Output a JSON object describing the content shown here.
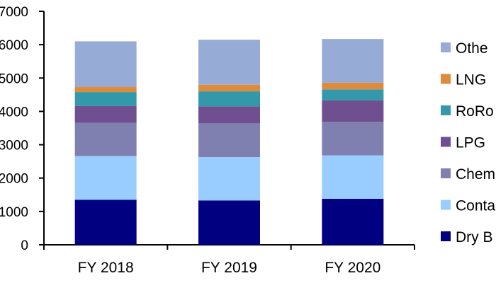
{
  "chart_data": {
    "type": "bar",
    "stacked": true,
    "categories": [
      "FY 2018",
      "FY 2019",
      "FY 2020"
    ],
    "ylim": [
      0,
      7000
    ],
    "yticks": [
      0,
      1000,
      2000,
      3000,
      4000,
      5000,
      6000,
      7000
    ],
    "ytick_labels": [
      "0",
      "1000",
      "2000",
      "3000",
      "4000",
      "5000",
      "6000",
      "7000"
    ],
    "legend_position": "right",
    "series": [
      {
        "name": "Dry B",
        "color": "#000080",
        "values": [
          1350,
          1330,
          1380
        ]
      },
      {
        "name": "Conta",
        "color": "#99CCFF",
        "values": [
          1310,
          1300,
          1300
        ]
      },
      {
        "name": "Chem",
        "color": "#8080B0",
        "values": [
          1000,
          1010,
          1010
        ]
      },
      {
        "name": "LPG",
        "color": "#6F4F8F",
        "values": [
          500,
          510,
          640
        ]
      },
      {
        "name": "RoRo",
        "color": "#3399AA",
        "values": [
          420,
          450,
          330
        ]
      },
      {
        "name": "LNG",
        "color": "#E08A3C",
        "values": [
          150,
          200,
          200
        ]
      },
      {
        "name": "Othe",
        "color": "#96ACD6",
        "values": [
          1370,
          1350,
          1310
        ]
      }
    ]
  }
}
